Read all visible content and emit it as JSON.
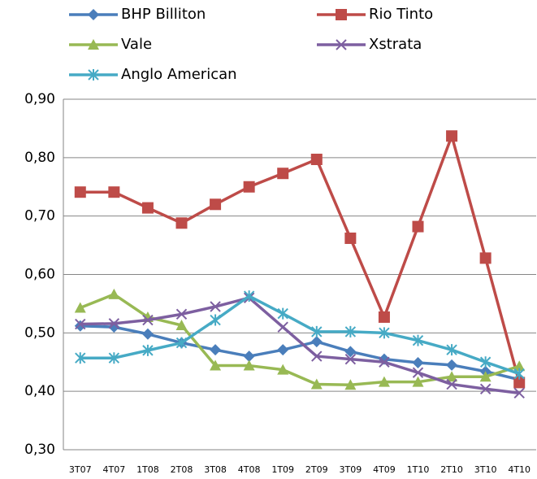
{
  "chart_data": {
    "type": "line",
    "categories": [
      "3T07",
      "4T07",
      "1T08",
      "2T08",
      "3T08",
      "4T08",
      "1T09",
      "2T09",
      "3T09",
      "4T09",
      "1T10",
      "2T10",
      "3T10",
      "4T10"
    ],
    "series": [
      {
        "name": "BHP Billiton",
        "color": "#4a7ebb",
        "marker": "diamond",
        "values": [
          0.512,
          0.51,
          0.498,
          0.483,
          0.471,
          0.46,
          0.471,
          0.485,
          0.468,
          0.455,
          0.449,
          0.445,
          0.434,
          0.42
        ]
      },
      {
        "name": "Rio Tinto",
        "color": "#be4b48",
        "marker": "square",
        "values": [
          0.741,
          0.741,
          0.714,
          0.688,
          0.72,
          0.75,
          0.773,
          0.797,
          0.662,
          0.527,
          0.682,
          0.837,
          0.628,
          0.415
        ]
      },
      {
        "name": "Vale",
        "color": "#98b954",
        "marker": "triangle",
        "values": [
          0.543,
          0.566,
          0.527,
          0.513,
          0.444,
          0.444,
          0.437,
          0.412,
          0.411,
          0.416,
          0.416,
          0.425,
          0.425,
          0.443
        ]
      },
      {
        "name": "Xstrata",
        "color": "#7d5fa0",
        "marker": "x",
        "values": [
          0.515,
          0.516,
          0.522,
          0.532,
          0.545,
          0.56,
          0.51,
          0.46,
          0.455,
          0.45,
          0.432,
          0.412,
          0.404,
          0.397
        ]
      },
      {
        "name": "Anglo American",
        "color": "#46aac5",
        "marker": "star",
        "values": [
          0.457,
          0.457,
          0.47,
          0.483,
          0.522,
          0.563,
          0.533,
          0.502,
          0.502,
          0.5,
          0.487,
          0.471,
          0.45,
          0.43
        ]
      }
    ],
    "ylim": [
      0.3,
      0.9
    ],
    "yticks": [
      {
        "value": 0.3,
        "label": "0,30"
      },
      {
        "value": 0.4,
        "label": "0,40"
      },
      {
        "value": 0.5,
        "label": "0,50"
      },
      {
        "value": 0.6,
        "label": "0,60"
      },
      {
        "value": 0.7,
        "label": "0,70"
      },
      {
        "value": 0.8,
        "label": "0,80"
      },
      {
        "value": 0.9,
        "label": "0,90"
      }
    ],
    "grid": true,
    "legend": "top"
  }
}
